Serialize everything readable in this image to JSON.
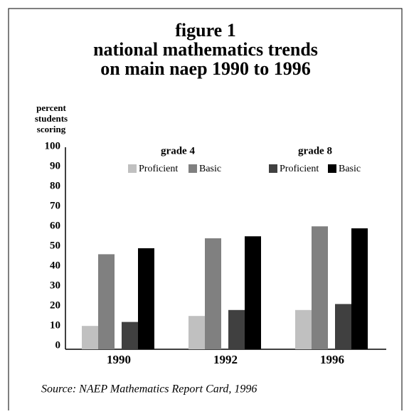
{
  "chart_data": {
    "type": "bar",
    "title": [
      "figure 1",
      "national mathematics trends",
      "on main naep 1990 to 1996"
    ],
    "y_label": [
      "percent",
      "students",
      "scoring"
    ],
    "categories": [
      "1990",
      "1992",
      "1996"
    ],
    "legend_groups": [
      "grade 4",
      "grade 8"
    ],
    "series": [
      {
        "name": "Proficient",
        "color": "#c0c0c0",
        "values": [
          11,
          16,
          19
        ]
      },
      {
        "name": "Basic",
        "color": "#808080",
        "values": [
          47,
          55,
          61
        ]
      },
      {
        "name": "Proficient",
        "color": "#404040",
        "values": [
          13,
          19,
          22
        ]
      },
      {
        "name": "Basic",
        "color": "#000000",
        "values": [
          50,
          56,
          60
        ]
      }
    ],
    "ylim": [
      0,
      100
    ],
    "yticks": [
      0,
      10,
      20,
      30,
      40,
      50,
      60,
      70,
      80,
      90,
      100
    ],
    "source": "Source: NAEP Mathematics Report Card, 1996"
  }
}
